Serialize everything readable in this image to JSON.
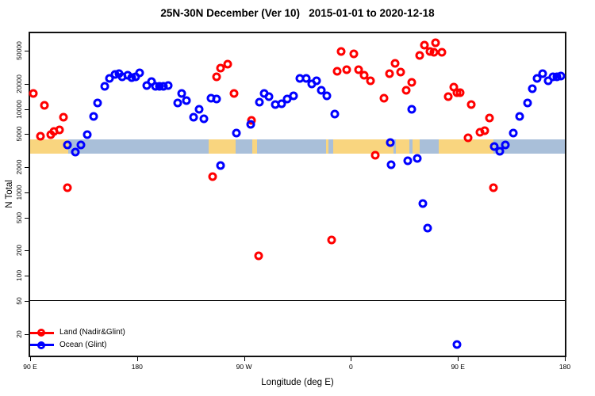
{
  "title": "25N-30N December (Ver 10)   2015-01-01 to 2020-12-18",
  "y_axis": {
    "label": "N Total",
    "ticks": [
      {
        "v": 20,
        "label": "20"
      },
      {
        "v": 50,
        "label": "50"
      },
      {
        "v": 100,
        "label": "100"
      },
      {
        "v": 200,
        "label": "200"
      },
      {
        "v": 500,
        "label": "500"
      },
      {
        "v": 1000,
        "label": "1000"
      },
      {
        "v": 2000,
        "label": "2000"
      },
      {
        "v": 5000,
        "label": "5000"
      },
      {
        "v": 10000,
        "label": "10000"
      },
      {
        "v": 20000,
        "label": "20000"
      },
      {
        "v": 50000,
        "label": "50000"
      }
    ]
  },
  "x_axis": {
    "label": "Longitude (deg E)",
    "ticks": [
      {
        "lon": 90,
        "label": "90 E"
      },
      {
        "lon": 180,
        "label": "180"
      },
      {
        "lon": 270,
        "label": "90 W"
      },
      {
        "lon": 360,
        "label": "0"
      },
      {
        "lon": 450,
        "label": "90 E"
      },
      {
        "lon": 540,
        "label": "180"
      }
    ]
  },
  "chart_data": {
    "type": "scatter",
    "y_log": true,
    "x_domain": [
      90,
      540
    ],
    "y_domain": [
      11,
      81000
    ],
    "ref_line_y": 50,
    "grid": false,
    "legend_position": "bottom-left",
    "map_band": {
      "y_top": 4330,
      "y_bottom": 2920,
      "land_color": "#f9d57f",
      "ocean_color": "#a9bfd9",
      "segments": [
        [
          "land",
          90,
          122
        ],
        [
          "ocean",
          122,
          240
        ],
        [
          "land",
          240,
          263
        ],
        [
          "ocean",
          263,
          277
        ],
        [
          "land",
          277,
          281
        ],
        [
          "ocean",
          281,
          339
        ],
        [
          "land",
          339,
          341
        ],
        [
          "ocean",
          341,
          345
        ],
        [
          "land",
          345,
          396
        ],
        [
          "ocean",
          396,
          398
        ],
        [
          "land",
          398,
          409
        ],
        [
          "ocean",
          409,
          412
        ],
        [
          "land",
          412,
          418
        ],
        [
          "ocean",
          418,
          434
        ],
        [
          "land",
          434,
          480
        ],
        [
          "ocean",
          480,
          540
        ]
      ]
    },
    "series": [
      {
        "name": "Land (Nadir&Glint)",
        "color": "#ff0000",
        "points": [
          [
            92.5,
            15400
          ],
          [
            99,
            4700
          ],
          [
            102,
            11000
          ],
          [
            107.5,
            4950
          ],
          [
            110,
            5400
          ],
          [
            115,
            5600
          ],
          [
            118,
            7900
          ],
          [
            121.5,
            1140
          ],
          [
            243.5,
            1540
          ],
          [
            246.8,
            24200
          ],
          [
            250.5,
            31000
          ],
          [
            256,
            34500
          ],
          [
            261.8,
            15500
          ],
          [
            276.5,
            7300
          ],
          [
            282.3,
            175
          ],
          [
            343.5,
            270
          ],
          [
            348.5,
            28600
          ],
          [
            351.7,
            48800
          ],
          [
            356.2,
            29900
          ],
          [
            362.5,
            45500
          ],
          [
            366.2,
            29300
          ],
          [
            371.3,
            25400
          ],
          [
            376.2,
            21900
          ],
          [
            380.6,
            2760
          ],
          [
            387.8,
            13500
          ],
          [
            392.2,
            26300
          ],
          [
            397.1,
            35100
          ],
          [
            401.6,
            27700
          ],
          [
            406.4,
            16900
          ],
          [
            411.3,
            20900
          ],
          [
            417.6,
            43600
          ],
          [
            422,
            58000
          ],
          [
            426.4,
            48800
          ],
          [
            430,
            47700
          ],
          [
            431.2,
            61900
          ],
          [
            436.7,
            47700
          ],
          [
            442,
            14200
          ],
          [
            446.5,
            18100
          ],
          [
            449.2,
            15800
          ],
          [
            452,
            15600
          ],
          [
            458.5,
            4550
          ],
          [
            461.2,
            11200
          ],
          [
            468.3,
            5250
          ],
          [
            472.7,
            5500
          ],
          [
            476.3,
            7800
          ],
          [
            480,
            1130
          ]
        ]
      },
      {
        "name": "Ocean (Glint)",
        "color": "#0000ff",
        "points": [
          [
            121.4,
            3670
          ],
          [
            128.1,
            3050
          ],
          [
            132.9,
            3700
          ],
          [
            138.1,
            4950
          ],
          [
            143.2,
            8200
          ],
          [
            147,
            11800
          ],
          [
            152.5,
            18700
          ],
          [
            157,
            23500
          ],
          [
            161.4,
            25900
          ],
          [
            165,
            26400
          ],
          [
            167.5,
            24200
          ],
          [
            171.9,
            25300
          ],
          [
            175.5,
            23600
          ],
          [
            178.6,
            24500
          ],
          [
            182.1,
            27000
          ],
          [
            188.1,
            19300
          ],
          [
            191.9,
            21300
          ],
          [
            195.5,
            18700
          ],
          [
            198.6,
            18500
          ],
          [
            202.2,
            18700
          ],
          [
            206,
            19000
          ],
          [
            214.2,
            11800
          ],
          [
            217.7,
            15300
          ],
          [
            221.5,
            12700
          ],
          [
            227.5,
            8000
          ],
          [
            232,
            9900
          ],
          [
            236.4,
            7600
          ],
          [
            242.2,
            13400
          ],
          [
            246.7,
            13300
          ],
          [
            250,
            2100
          ],
          [
            263.8,
            5130
          ],
          [
            275.6,
            6500
          ],
          [
            282.7,
            12100
          ],
          [
            287.2,
            15500
          ],
          [
            291,
            14200
          ],
          [
            296.1,
            11250
          ],
          [
            301.6,
            11600
          ],
          [
            306.5,
            13300
          ],
          [
            311.7,
            14500
          ],
          [
            316.8,
            23400
          ],
          [
            322.1,
            23200
          ],
          [
            326.8,
            20100
          ],
          [
            331.2,
            22000
          ],
          [
            335,
            16700
          ],
          [
            339.9,
            14500
          ],
          [
            346.2,
            8700
          ],
          [
            393.1,
            3980
          ],
          [
            393.6,
            2140
          ],
          [
            407.8,
            2390
          ],
          [
            411.4,
            9900
          ],
          [
            415.8,
            2560
          ],
          [
            420.7,
            740
          ],
          [
            424.5,
            370
          ],
          [
            449.2,
            15
          ],
          [
            480.8,
            3570
          ],
          [
            485.3,
            3080
          ],
          [
            490.1,
            3740
          ],
          [
            496.8,
            5130
          ],
          [
            502.2,
            8100
          ],
          [
            508.4,
            11800
          ],
          [
            512.4,
            17600
          ],
          [
            516.9,
            23200
          ],
          [
            521.3,
            26800
          ],
          [
            525.8,
            22000
          ],
          [
            530.2,
            24200
          ],
          [
            533.5,
            24200
          ],
          [
            536.9,
            24600
          ]
        ]
      }
    ]
  }
}
